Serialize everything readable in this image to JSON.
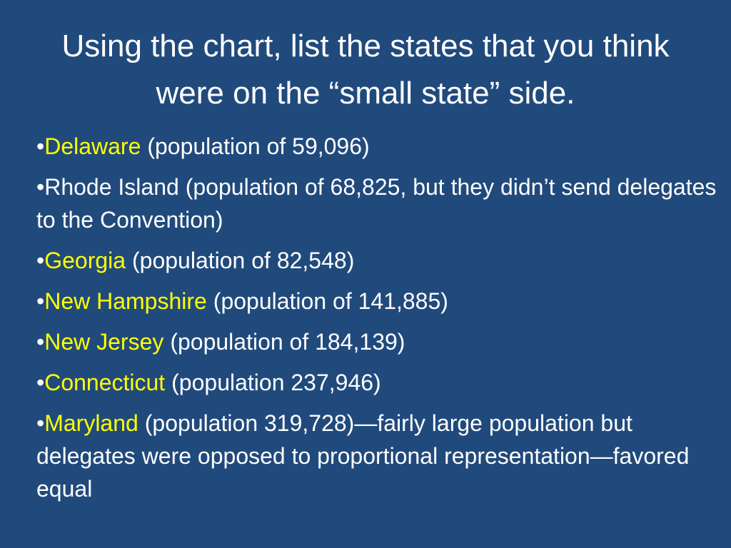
{
  "title": "Using the chart, list the states that you think were on the “small state” side.",
  "highlight_color": "#ffff00",
  "items": [
    {
      "state": "Delaware",
      "text": "(population of 59,096)",
      "highlighted": true
    },
    {
      "state": "Rhode Island",
      "text": "(population of 68,825, but they didn’t send delegates to the Convention)",
      "highlighted": false
    },
    {
      "state": "Georgia",
      "text": "(population of 82,548)",
      "highlighted": true
    },
    {
      "state": "New Hampshire",
      "text": "(population of 141,885)",
      "highlighted": true
    },
    {
      "state": "New Jersey",
      "text": "(population of 184,139)",
      "highlighted": true
    },
    {
      "state": "Connecticut",
      "text": "(population 237,946)",
      "highlighted": true
    },
    {
      "state": "Maryland",
      "text": "(population 319,728)—fairly large population but delegates were opposed to proportional representation—favored equal",
      "highlighted": true
    }
  ]
}
